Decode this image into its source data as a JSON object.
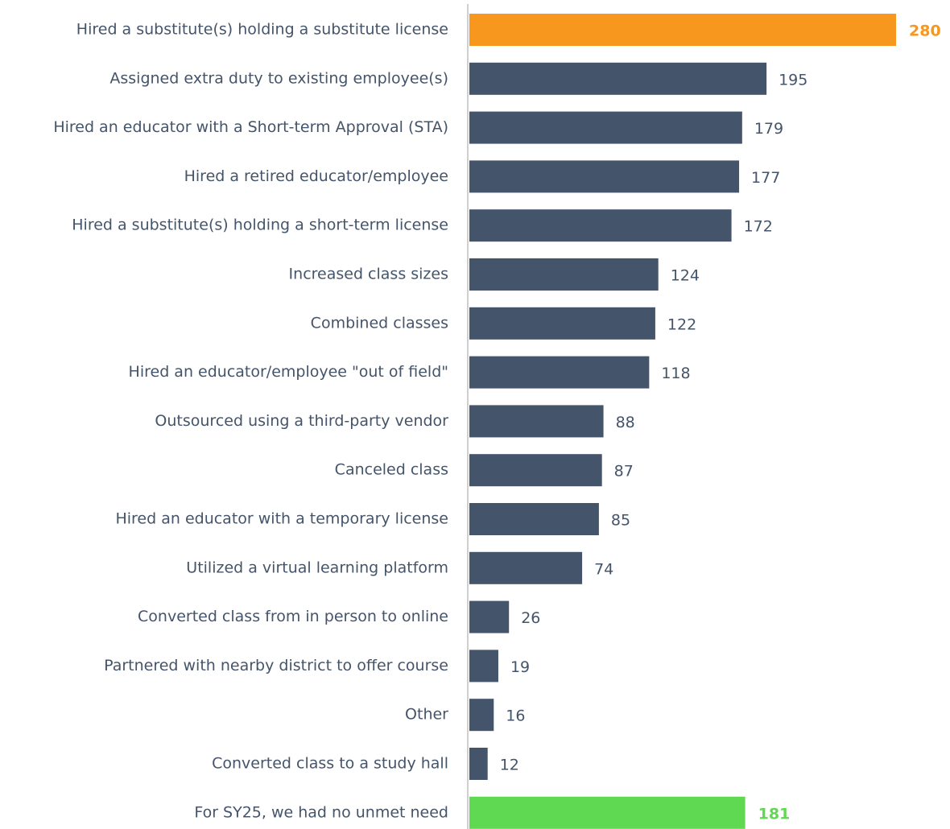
{
  "chart_data": {
    "type": "barh",
    "categories": [
      "Hired a substitute(s) holding a substitute license",
      "Assigned extra duty to existing employee(s)",
      "Hired an educator with a Short-term Approval (STA)",
      "Hired a retired educator/employee",
      "Hired a substitute(s) holding a short-term license",
      "Increased class sizes",
      "Combined classes",
      "Hired an educator/employee \"out of field\"",
      "Outsourced using a third-party vendor",
      "Canceled class",
      "Hired an educator with a temporary license",
      "Utilized a virtual learning platform",
      "Converted class from in person to online",
      "Partnered with nearby district to offer course",
      "Other",
      "Converted class to a study hall",
      "For SY25, we had no unmet need"
    ],
    "values": [
      280,
      195,
      179,
      177,
      172,
      124,
      122,
      118,
      88,
      87,
      85,
      74,
      26,
      19,
      16,
      12,
      181
    ],
    "colors": [
      "#f7971e",
      "#44546a",
      "#44546a",
      "#44546a",
      "#44546a",
      "#44546a",
      "#44546a",
      "#44546a",
      "#44546a",
      "#44546a",
      "#44546a",
      "#44546a",
      "#44546a",
      "#44546a",
      "#44546a",
      "#44546a",
      "#5fd852"
    ],
    "xlim": [
      0,
      280
    ]
  }
}
